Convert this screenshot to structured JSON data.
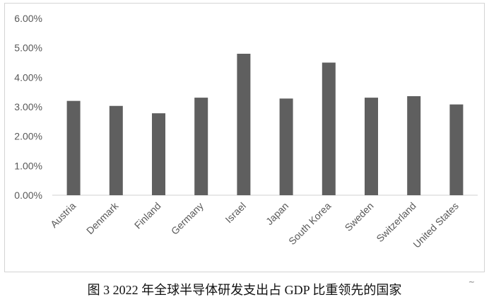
{
  "chart_data": {
    "type": "bar",
    "categories": [
      "Austria",
      "Denmark",
      "Finland",
      "Germany",
      "Israel",
      "Japan",
      "South Korea",
      "Sweden",
      "Switzerland",
      "United States"
    ],
    "values": [
      3.2,
      3.03,
      2.78,
      3.31,
      4.8,
      3.28,
      4.5,
      3.31,
      3.36,
      3.08
    ],
    "y_ticks": [
      "0.00%",
      "1.00%",
      "2.00%",
      "3.00%",
      "4.00%",
      "5.00%",
      "6.00%"
    ],
    "ylim": [
      0,
      6
    ],
    "unit": "%",
    "grid": false,
    "bar_color": "#5f5f5f",
    "legend": "none"
  },
  "caption": "图 3 2022 年全球半导体研发支出占 GDP 比重领先的国家",
  "corner_mark": "~"
}
